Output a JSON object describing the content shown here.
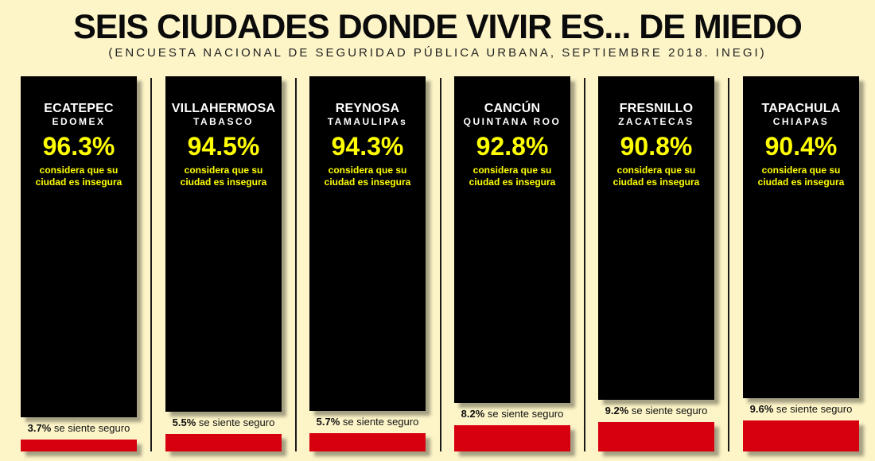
{
  "header": {
    "title": "SEIS CIUDADES DONDE VIVIR ES... DE MIEDO",
    "subtitle": "(ENCUESTA NACIONAL DE SEGURIDAD PÚBLICA URBANA, SEPTIEMBRE 2018. INEGI)"
  },
  "colors": {
    "background": "#fdf5c8",
    "insecure_bar": "#000000",
    "safe_bar": "#d7000f",
    "percent_text": "#ffff00"
  },
  "chart_data": {
    "type": "bar",
    "title": "SEIS CIUDADES DONDE VIVIR ES... DE MIEDO",
    "subtitle": "(ENCUESTA NACIONAL DE SEGURIDAD PÚBLICA URBANA, SEPTIEMBRE 2018. INEGI)",
    "ylim": [
      0,
      100
    ],
    "insecure_caption_1": "considera que su",
    "insecure_caption_2": "ciudad es insegura",
    "safe_caption": "se siente seguro",
    "cities": [
      {
        "city": "ECATEPEC",
        "state": "EDOMEX",
        "insecure": 96.3,
        "insecure_label": "96.3%",
        "safe": 3.7,
        "safe_label": "3.7%"
      },
      {
        "city": "VILLAHERMOSA",
        "state": "TABASCO",
        "insecure": 94.5,
        "insecure_label": "94.5%",
        "safe": 5.5,
        "safe_label": "5.5%"
      },
      {
        "city": "REYNOSA",
        "state": "TAMAULIPAs",
        "insecure": 94.3,
        "insecure_label": "94.3%",
        "safe": 5.7,
        "safe_label": "5.7%"
      },
      {
        "city": "CANCÚN",
        "state": "QUINTANA ROO",
        "insecure": 92.8,
        "insecure_label": "92.8%",
        "safe": 8.2,
        "safe_label": "8.2%"
      },
      {
        "city": "FRESNILLO",
        "state": "ZACATECAS",
        "insecure": 90.8,
        "insecure_label": "90.8%",
        "safe": 9.2,
        "safe_label": "9.2%"
      },
      {
        "city": "TAPACHULA",
        "state": "CHIAPAS",
        "insecure": 90.4,
        "insecure_label": "90.4%",
        "safe": 9.6,
        "safe_label": "9.6%"
      }
    ]
  }
}
